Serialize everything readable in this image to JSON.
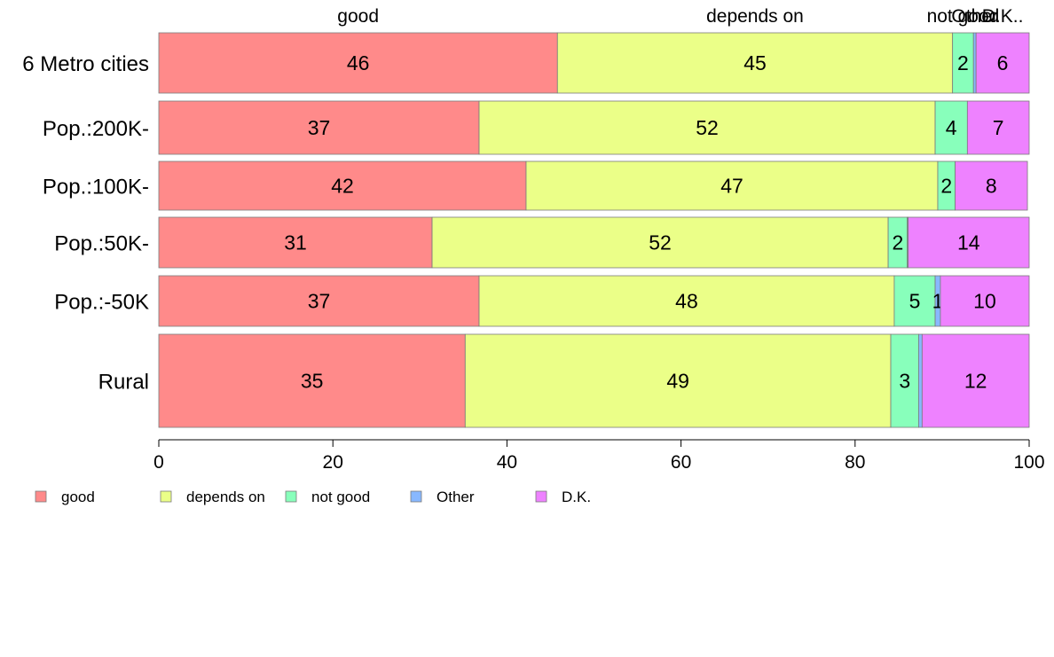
{
  "chart_data": {
    "type": "bar",
    "orientation": "horizontal",
    "stacked": true,
    "categories": [
      "6 Metro cities",
      "Pop.:200K-",
      "Pop.:100K-",
      "Pop.:50K-",
      "Pop.:-50K",
      "Rural"
    ],
    "series": [
      {
        "name": "good",
        "color": "#ff8a8a",
        "values": [
          45.8,
          36.8,
          42.2,
          31.4,
          36.8,
          35.2
        ]
      },
      {
        "name": "depends on",
        "color": "#ebff88",
        "values": [
          45.4,
          52.4,
          47.3,
          52.4,
          47.7,
          48.9
        ]
      },
      {
        "name": "not good",
        "color": "#88ffbb",
        "values": [
          2.4,
          3.7,
          2.0,
          2.2,
          4.7,
          3.2
        ]
      },
      {
        "name": "Other",
        "color": "#88b8ff",
        "values": [
          0.3,
          0.0,
          0.0,
          0.1,
          0.6,
          0.4
        ]
      },
      {
        "name": "D.K.",
        "color": "#ee82ff",
        "values": [
          6.1,
          7.1,
          8.3,
          13.9,
          10.2,
          12.3
        ]
      }
    ],
    "data_labels": [
      [
        "46",
        "45",
        "2",
        "",
        "6"
      ],
      [
        "37",
        "52",
        "4",
        "",
        "7"
      ],
      [
        "42",
        "47",
        "2",
        "",
        "8"
      ],
      [
        "31",
        "52",
        "2",
        "",
        "14"
      ],
      [
        "37",
        "48",
        "5",
        "1",
        "10"
      ],
      [
        "35",
        "49",
        "3",
        "",
        "12"
      ]
    ],
    "top_labels": [
      "good",
      "depends on",
      "not good",
      "Other",
      "D.K.."
    ],
    "xlim": [
      0,
      100
    ],
    "x_ticks": [
      0,
      20,
      40,
      60,
      80,
      100
    ],
    "title": "",
    "xlabel": "",
    "ylabel": "",
    "grid": false,
    "legend": {
      "placement": "bottom-left",
      "items": [
        "good",
        "depends on",
        "not good",
        "Other",
        "D.K."
      ]
    }
  }
}
